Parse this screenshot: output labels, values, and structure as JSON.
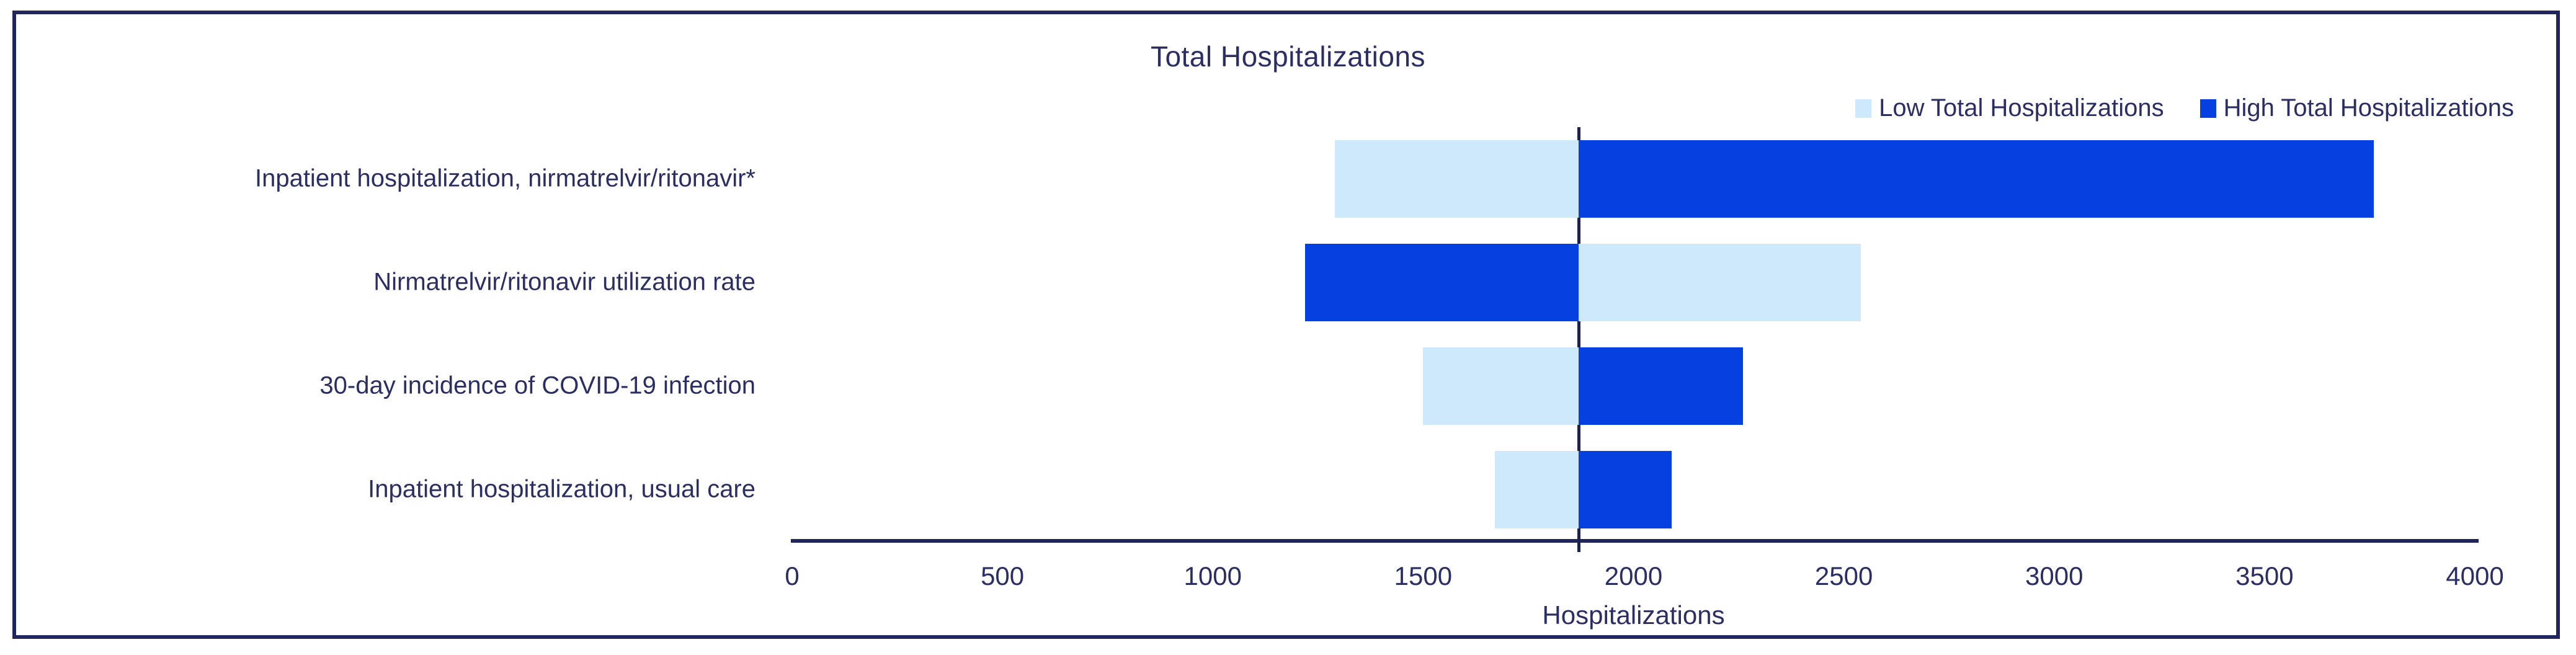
{
  "chart_data": {
    "type": "bar",
    "subtype": "tornado",
    "title": "Total Hospitalizations",
    "xlabel": "Hospitalizations",
    "xlim": [
      0,
      4000
    ],
    "xticks": [
      0,
      500,
      1000,
      1500,
      2000,
      2500,
      3000,
      3500,
      4000
    ],
    "base_value": 1870,
    "grid": false,
    "legend_position": "top-right",
    "categories": [
      "Inpatient hospitalization, nirmatrelvir/ritonavir*",
      "Nirmatrelvir/ritonavir utilization rate",
      "30-day incidence of COVID-19 infection",
      "Inpatient hospitalization, usual care"
    ],
    "series": [
      {
        "name": "Low Total Hospitalizations",
        "color": "#cde9fb",
        "values": [
          1290,
          2540,
          1500,
          1670
        ]
      },
      {
        "name": "High Total Hospitalizations",
        "color": "#0540e0",
        "values": [
          3760,
          1220,
          2260,
          2090
        ]
      }
    ]
  },
  "colors": {
    "low_bar": "#cde9fb",
    "high_bar": "#0540e0",
    "text_navy": "#2b2e63",
    "line_navy": "#20255b",
    "frame_border": "#20255b"
  }
}
